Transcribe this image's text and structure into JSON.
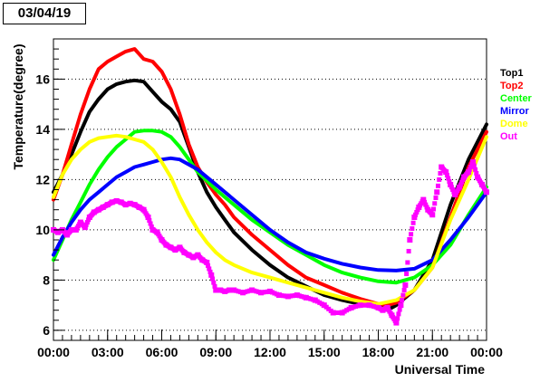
{
  "date_label": "03/04/19",
  "chart_data": {
    "type": "line",
    "title": "03/04/19",
    "xlabel": "Universal Time",
    "ylabel": "Temperature(degree)",
    "x_unit": "hours UTC",
    "xlim": [
      0,
      24
    ],
    "ylim": [
      5.6,
      17.6
    ],
    "x_ticks": [
      0,
      3,
      6,
      9,
      12,
      15,
      18,
      21,
      24
    ],
    "x_tick_labels": [
      "00:00",
      "03:00",
      "06:00",
      "09:00",
      "12:00",
      "15:00",
      "18:00",
      "21:00",
      "00:00"
    ],
    "y_ticks": [
      6,
      8,
      10,
      12,
      14,
      16
    ],
    "y_tick_labels": [
      "6",
      "8",
      "10",
      "12",
      "14",
      "16"
    ],
    "grid": "horizontal dotted",
    "legend_position": "right",
    "series": [
      {
        "name": "Top1",
        "color": "#000000",
        "x": [
          0,
          0.5,
          1,
          1.5,
          2,
          2.5,
          3,
          3.5,
          4,
          4.5,
          5,
          5.5,
          6,
          6.5,
          7,
          7.5,
          8,
          8.5,
          9,
          9.5,
          10,
          11,
          12,
          13,
          14,
          15,
          16,
          17,
          18,
          18.5,
          19,
          20,
          21,
          22,
          23,
          24
        ],
        "y": [
          11.5,
          12.2,
          13.0,
          13.9,
          14.7,
          15.2,
          15.6,
          15.8,
          15.9,
          15.95,
          15.9,
          15.5,
          15.1,
          14.8,
          14.3,
          13.3,
          12.3,
          11.5,
          10.9,
          10.4,
          9.9,
          9.2,
          8.6,
          8.1,
          7.75,
          7.4,
          7.2,
          7.05,
          6.95,
          6.8,
          7.0,
          7.6,
          8.8,
          11.0,
          12.8,
          14.2
        ]
      },
      {
        "name": "Top2",
        "color": "#ff0000",
        "x": [
          0,
          0.5,
          1,
          1.5,
          2,
          2.5,
          3,
          3.5,
          4,
          4.5,
          5,
          5.5,
          6,
          6.5,
          7,
          7.5,
          8,
          8.5,
          9,
          9.5,
          10,
          11,
          12,
          13,
          14,
          15,
          16,
          17,
          18,
          18.5,
          19,
          20,
          21,
          22,
          23,
          24
        ],
        "y": [
          11.2,
          12.2,
          13.4,
          14.6,
          15.6,
          16.4,
          16.7,
          16.9,
          17.1,
          17.2,
          16.8,
          16.7,
          16.3,
          15.6,
          14.6,
          13.4,
          12.5,
          11.9,
          11.4,
          11.0,
          10.5,
          9.8,
          9.2,
          8.6,
          8.1,
          7.8,
          7.5,
          7.25,
          7.05,
          7.0,
          7.1,
          7.6,
          8.5,
          10.5,
          12.5,
          13.9
        ]
      },
      {
        "name": "Center",
        "color": "#00ff00",
        "x": [
          0,
          0.5,
          1,
          1.5,
          2,
          2.5,
          3,
          3.5,
          4,
          4.5,
          5,
          5.5,
          6,
          6.5,
          7,
          7.5,
          8,
          9,
          10,
          11,
          12,
          13,
          14,
          15,
          16,
          17,
          18,
          19,
          20,
          21,
          22,
          23,
          24
        ],
        "y": [
          8.8,
          9.6,
          10.4,
          11.1,
          11.8,
          12.4,
          12.9,
          13.3,
          13.6,
          13.9,
          13.95,
          13.95,
          13.9,
          13.7,
          13.3,
          12.8,
          12.3,
          11.6,
          11.0,
          10.4,
          9.9,
          9.4,
          9.0,
          8.6,
          8.3,
          8.1,
          7.95,
          7.9,
          8.1,
          8.6,
          9.4,
          10.6,
          11.7
        ]
      },
      {
        "name": "Mirror",
        "color": "#0000ff",
        "x": [
          0,
          0.5,
          1,
          1.5,
          2,
          2.5,
          3,
          3.5,
          4,
          4.5,
          5,
          5.5,
          6,
          6.5,
          7,
          8,
          9,
          10,
          11,
          12,
          13,
          14,
          15,
          16,
          17,
          18,
          19,
          20,
          21,
          22,
          23,
          24
        ],
        "y": [
          9.0,
          9.7,
          10.3,
          10.8,
          11.2,
          11.5,
          11.8,
          12.1,
          12.3,
          12.5,
          12.6,
          12.7,
          12.8,
          12.85,
          12.8,
          12.4,
          11.8,
          11.2,
          10.6,
          10.0,
          9.5,
          9.1,
          8.85,
          8.65,
          8.5,
          8.4,
          8.38,
          8.45,
          8.8,
          9.6,
          10.5,
          11.5
        ]
      },
      {
        "name": "Dome",
        "color": "#ffff00",
        "x": [
          0,
          0.5,
          1,
          1.5,
          2,
          2.5,
          3,
          3.5,
          4,
          4.5,
          5,
          5.5,
          6,
          6.5,
          7,
          7.5,
          8,
          8.5,
          9,
          9.5,
          10,
          11,
          12,
          13,
          14,
          15,
          16,
          17,
          18,
          19,
          20,
          21,
          22,
          23,
          24
        ],
        "y": [
          11.3,
          12.2,
          12.8,
          13.2,
          13.5,
          13.65,
          13.7,
          13.75,
          13.7,
          13.6,
          13.5,
          13.2,
          12.7,
          12.1,
          11.3,
          10.6,
          10.0,
          9.5,
          9.1,
          8.8,
          8.6,
          8.3,
          8.1,
          7.9,
          7.7,
          7.5,
          7.3,
          7.15,
          7.05,
          7.2,
          7.6,
          8.5,
          10.4,
          12.0,
          13.7
        ]
      },
      {
        "name": "Out",
        "color": "#ff00ff",
        "x": [
          0,
          0.25,
          0.5,
          0.75,
          1,
          1.25,
          1.5,
          1.75,
          2,
          2.25,
          2.5,
          2.75,
          3,
          3.25,
          3.5,
          3.75,
          4,
          4.25,
          4.5,
          4.75,
          5,
          5.25,
          5.5,
          5.75,
          6,
          6.25,
          6.5,
          6.75,
          7,
          7.25,
          7.5,
          7.75,
          8,
          8.25,
          8.5,
          8.75,
          9,
          9.25,
          9.5,
          9.75,
          10,
          10.5,
          11,
          11.5,
          12,
          12.5,
          13,
          13.5,
          14,
          14.5,
          15,
          15.5,
          16,
          16.5,
          17,
          17.5,
          18,
          18.25,
          18.5,
          18.75,
          19,
          19.25,
          19.5,
          19.75,
          20,
          20.25,
          20.5,
          20.75,
          21,
          21.25,
          21.5,
          21.75,
          22,
          22.25,
          22.5,
          22.75,
          23,
          23.25,
          23.5,
          23.75,
          24
        ],
        "y": [
          10.0,
          9.9,
          10.0,
          9.8,
          10.0,
          10.0,
          10.3,
          10.1,
          10.5,
          10.7,
          10.8,
          10.9,
          11.0,
          11.1,
          11.15,
          11.1,
          11.0,
          11.05,
          11.0,
          10.9,
          10.8,
          10.5,
          10.0,
          9.9,
          9.6,
          9.4,
          9.3,
          9.2,
          9.3,
          9.1,
          9.0,
          8.9,
          9.0,
          8.8,
          8.7,
          8.2,
          7.6,
          7.6,
          7.55,
          7.6,
          7.6,
          7.5,
          7.6,
          7.5,
          7.55,
          7.4,
          7.35,
          7.4,
          7.3,
          7.2,
          7.0,
          6.7,
          6.7,
          6.9,
          7.0,
          7.0,
          6.9,
          6.8,
          6.9,
          6.6,
          6.3,
          7.0,
          7.8,
          9.6,
          10.5,
          10.9,
          11.2,
          10.8,
          10.6,
          11.5,
          12.5,
          12.3,
          11.8,
          11.4,
          11.7,
          12.1,
          12.3,
          12.7,
          12.1,
          11.8,
          11.5
        ]
      }
    ]
  }
}
